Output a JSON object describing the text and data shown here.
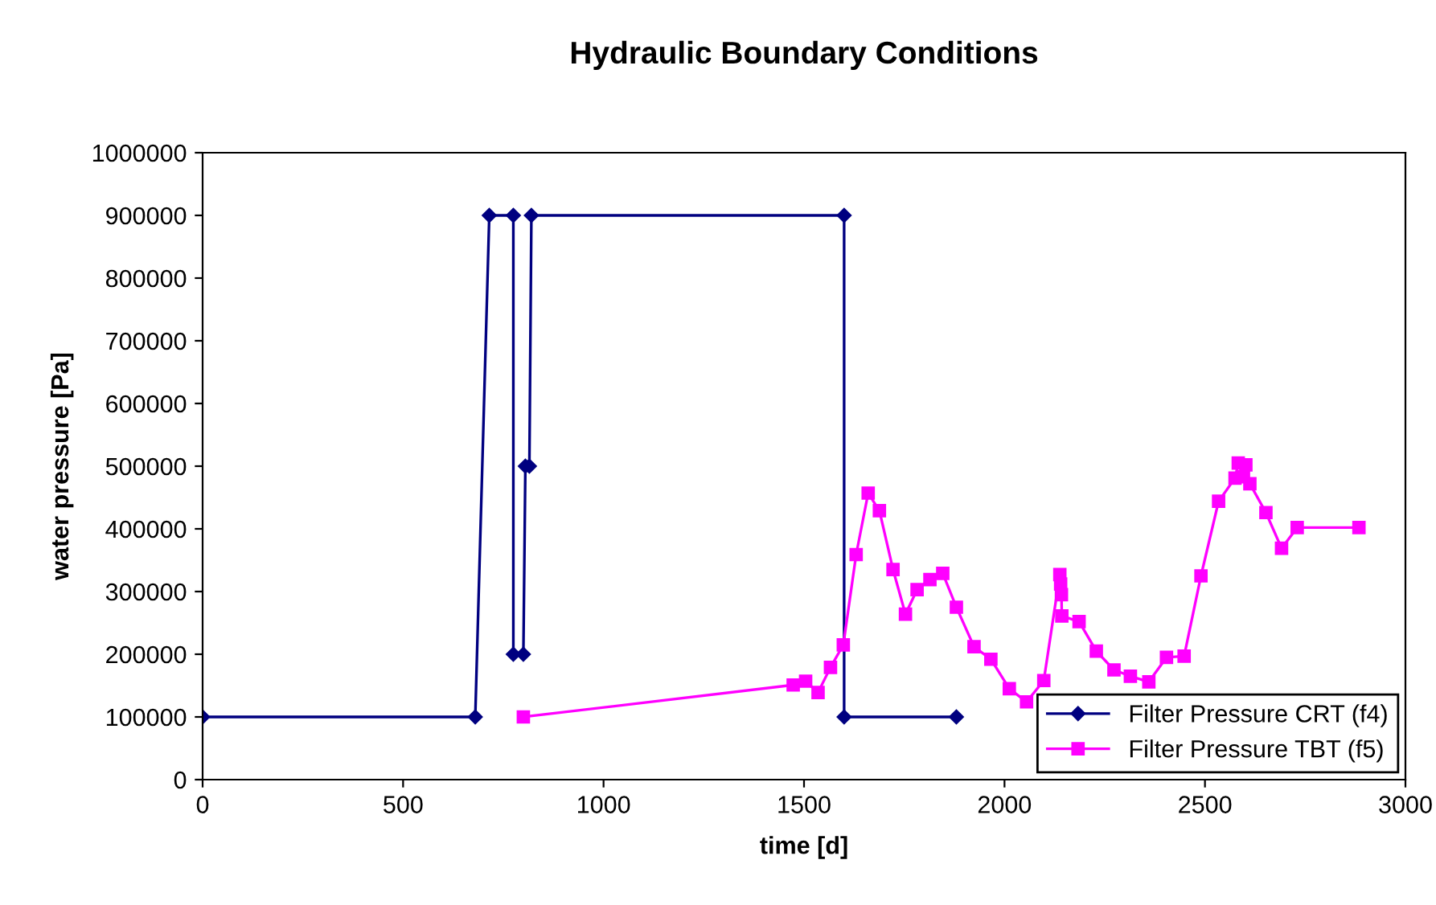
{
  "chart_data": {
    "type": "line",
    "title": "Hydraulic Boundary Conditions",
    "xlabel": "time [d]",
    "ylabel": "water pressure [Pa]",
    "xlim": [
      0,
      3000
    ],
    "xticks": [
      0,
      500,
      1000,
      1500,
      2000,
      2500,
      3000
    ],
    "ylim": [
      0,
      1000000
    ],
    "yticks": [
      0,
      100000,
      200000,
      300000,
      400000,
      500000,
      600000,
      700000,
      800000,
      900000,
      1000000
    ],
    "grid": false,
    "legend": "bottom right",
    "line_style": "solid",
    "series": [
      {
        "name": "Filter Pressure CRT (f4)",
        "color": "#000080",
        "marker": "diamond",
        "x": [
          0,
          680,
          715,
          775,
          775,
          800,
          805,
          815,
          820,
          1600,
          1600,
          1880
        ],
        "values": [
          100000,
          100000,
          900000,
          900000,
          200000,
          200000,
          500000,
          500000,
          900000,
          900000,
          100000,
          100000
        ]
      },
      {
        "name": "Filter Pressure TBT (f5)",
        "color": "#ff00ff",
        "marker": "square",
        "x": [
          800,
          1473,
          1504,
          1535,
          1566,
          1598,
          1630,
          1660,
          1688,
          1722,
          1753,
          1782,
          1814,
          1846,
          1880,
          1924,
          1966,
          2012,
          2055,
          2098,
          2138,
          2140,
          2142,
          2143,
          2186,
          2229,
          2273,
          2314,
          2360,
          2404,
          2448,
          2490,
          2534,
          2575,
          2583,
          2602,
          2596,
          2612,
          2652,
          2691,
          2730,
          2884
        ],
        "values": [
          100000,
          151000,
          157000,
          139000,
          179000,
          215000,
          359000,
          457000,
          429000,
          335000,
          264000,
          303000,
          319000,
          329000,
          275000,
          212000,
          192000,
          145000,
          124000,
          158000,
          327000,
          312000,
          295000,
          261000,
          252000,
          205000,
          175000,
          165000,
          156000,
          195000,
          197000,
          325000,
          444000,
          481000,
          505000,
          502000,
          483000,
          472000,
          426000,
          369000,
          402000,
          402000
        ]
      }
    ]
  }
}
